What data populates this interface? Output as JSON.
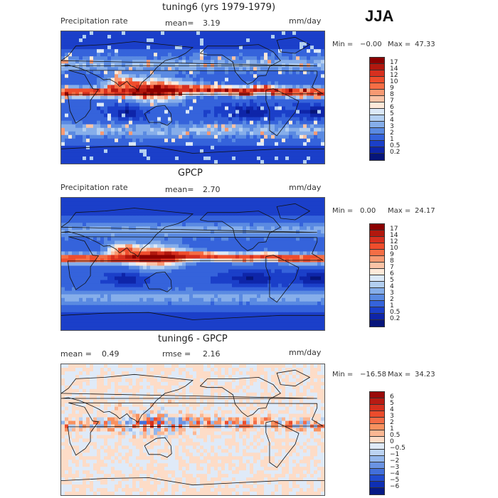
{
  "season": "JJA",
  "panels": [
    {
      "title": "tuning6 (yrs 1979-1979)",
      "left_label": "Precipitation rate",
      "stat_label": "mean=",
      "stat_value": "3.19",
      "units": "mm/day",
      "min_label": "Min =",
      "min_value": "−0.00",
      "max_label": "Max =",
      "max_value": "47.33",
      "field": "model"
    },
    {
      "title": "GPCP",
      "left_label": "Precipitation rate",
      "stat_label": "mean=",
      "stat_value": "2.70",
      "units": "mm/day",
      "min_label": "Min =",
      "min_value": "0.00",
      "max_label": "Max =",
      "max_value": "24.17",
      "field": "obs"
    },
    {
      "title": "tuning6 - GPCP",
      "left_label": "mean =",
      "left_value": "0.49",
      "stat_label": "rmse =",
      "stat_value": "2.16",
      "units": "mm/day",
      "min_label": "Min =",
      "min_value": "−16.58",
      "max_label": "Max =",
      "max_value": "34.23",
      "field": "diff"
    }
  ],
  "colorbars": {
    "precip": {
      "labels": [
        "17",
        "14",
        "12",
        "10",
        "9",
        "8",
        "7",
        "6",
        "5",
        "4",
        "3",
        "2",
        "1",
        "0.5",
        "0.2"
      ],
      "colors": [
        "#8b0000",
        "#b2180e",
        "#d7301f",
        "#ef4d2c",
        "#f56e45",
        "#f89a73",
        "#fbc3a6",
        "#fde9d9",
        "#dbe8f7",
        "#b3cff1",
        "#86aeea",
        "#5a8ae2",
        "#3563db",
        "#1b3fc9",
        "#0e25a9",
        "#06157a"
      ]
    },
    "diff": {
      "labels": [
        "6",
        "5",
        "4",
        "3",
        "2",
        "1",
        "0.5",
        "0",
        "−0.5",
        "−1",
        "−2",
        "−3",
        "−4",
        "−5",
        "−6"
      ],
      "colors": [
        "#9a0a0a",
        "#b81b13",
        "#d5301e",
        "#eb4c2d",
        "#f46c46",
        "#f8915f",
        "#fbb793",
        "#fddcc7",
        "#dfeaf8",
        "#bcd3f2",
        "#93b6ec",
        "#6a93e3",
        "#426fdb",
        "#214bd0",
        "#0e2fb4",
        "#061a86"
      ]
    }
  }
}
